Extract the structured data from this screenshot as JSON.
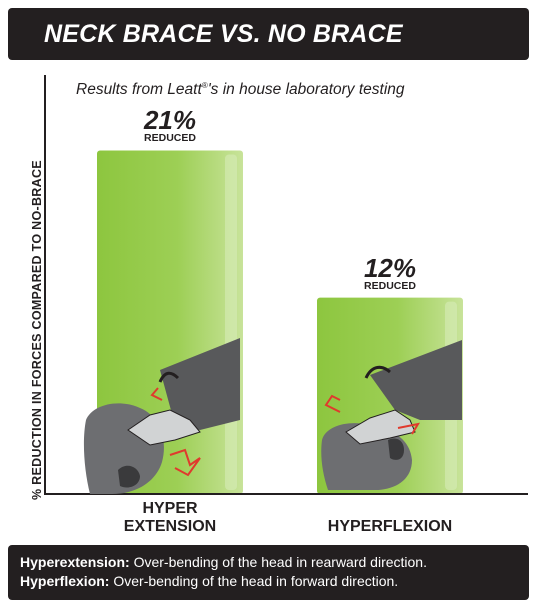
{
  "header": {
    "title": "NECK BRACE VS. NO BRACE",
    "subtitle_pre": "Results from Leatt",
    "subtitle_sup": "®",
    "subtitle_post": "'s in house laboratory testing"
  },
  "chart_data": {
    "type": "bar",
    "categories": [
      "HYPER EXTENSION",
      "HYPERFLEXION"
    ],
    "values": [
      21,
      12
    ],
    "value_labels": [
      "21%",
      "12%"
    ],
    "sub_label": "REDUCED",
    "ylabel": "% REDUCTION IN FORCES COMPARED TO NO-BRACE",
    "xlabel": "",
    "ylim": [
      0,
      25
    ],
    "grid": false,
    "bar_color": "#8dc63f",
    "bar_highlight": "#c8e39a"
  },
  "category_lines": [
    [
      "HYPER",
      "EXTENSION"
    ],
    [
      "HYPERFLEXION"
    ]
  ],
  "footer": {
    "lines": [
      {
        "term": "Hyperextension:",
        "text": " Over-bending of the head in rearward direction."
      },
      {
        "term": "Hyperflexion:",
        "text": " Over-bending of the head in forward direction."
      }
    ]
  },
  "icons": [
    "hyperextension-illustration",
    "hyperflexion-illustration"
  ]
}
